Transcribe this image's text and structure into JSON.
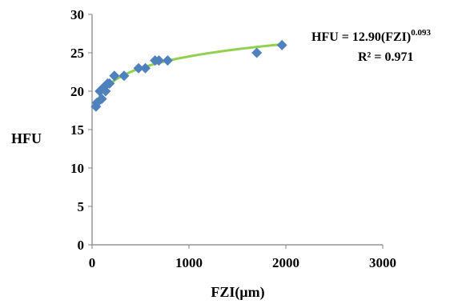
{
  "chart_data": {
    "type": "scatter",
    "xlabel": "FZI(μm)",
    "ylabel": "HFU",
    "xlim": [
      0,
      3000
    ],
    "ylim": [
      0,
      30
    ],
    "xticks": [
      "0",
      "1000",
      "2000",
      "3000"
    ],
    "yticks": [
      "0",
      "5",
      "10",
      "15",
      "20",
      "25",
      "30"
    ],
    "grid": false,
    "series": [
      {
        "marker": "diamond",
        "color": "#4f81bd",
        "points": [
          {
            "x": 40,
            "y": 18
          },
          {
            "x": 50,
            "y": 18.5
          },
          {
            "x": 80,
            "y": 20
          },
          {
            "x": 100,
            "y": 19
          },
          {
            "x": 120,
            "y": 20.5
          },
          {
            "x": 140,
            "y": 20
          },
          {
            "x": 160,
            "y": 21
          },
          {
            "x": 180,
            "y": 21
          },
          {
            "x": 230,
            "y": 22
          },
          {
            "x": 330,
            "y": 22
          },
          {
            "x": 480,
            "y": 23
          },
          {
            "x": 550,
            "y": 23
          },
          {
            "x": 650,
            "y": 24
          },
          {
            "x": 690,
            "y": 24
          },
          {
            "x": 780,
            "y": 24
          },
          {
            "x": 1700,
            "y": 25
          },
          {
            "x": 1960,
            "y": 26
          }
        ]
      }
    ],
    "trendline": {
      "type": "power",
      "coefficient": 12.9,
      "exponent": 0.093,
      "x_range": [
        30,
        1960
      ],
      "color": "#92d050"
    },
    "annotation": {
      "equation_main": "HFU = 12.90(FZI)",
      "equation_exp": "0.093",
      "r_squared": "R² = 0.971"
    }
  }
}
